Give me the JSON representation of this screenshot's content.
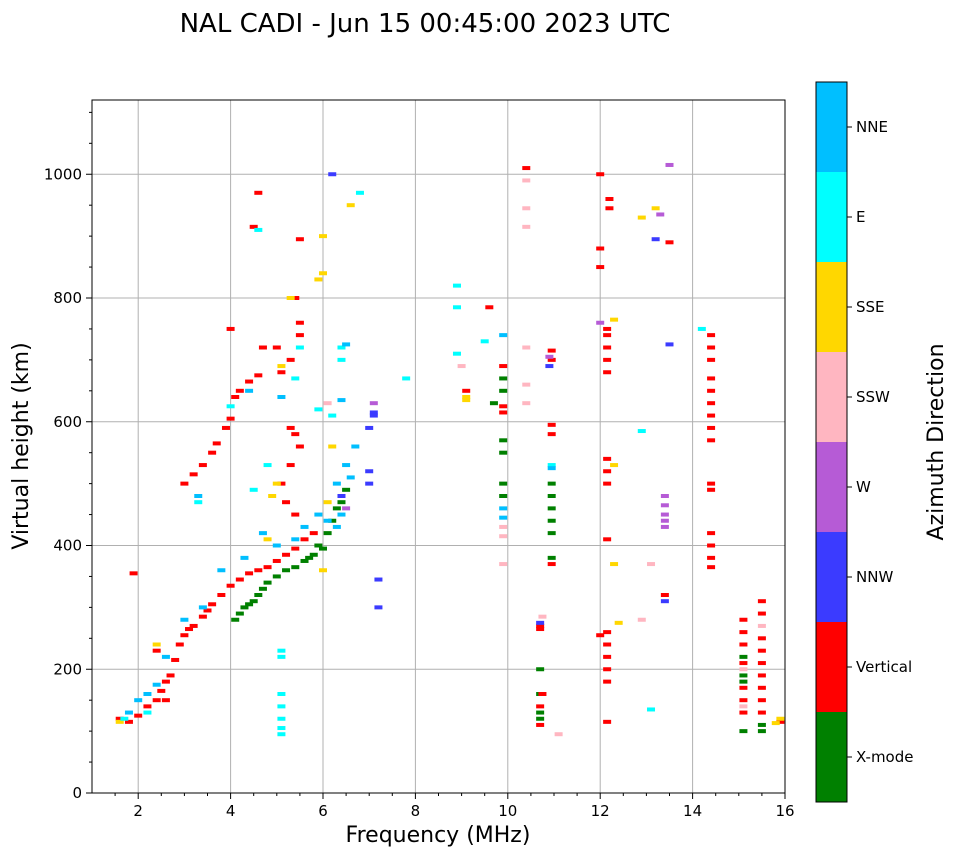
{
  "chart_data": {
    "type": "scatter",
    "title": "NAL CADI - Jun 15 00:45:00 2023 UTC",
    "xlabel": "Frequency (MHz)",
    "ylabel": "Virtual height (km)",
    "xlim": [
      1,
      16
    ],
    "ylim": [
      0,
      1120
    ],
    "xticks": [
      2,
      4,
      6,
      8,
      10,
      12,
      14,
      16
    ],
    "yticks": [
      0,
      200,
      400,
      600,
      800,
      1000
    ],
    "grid": true,
    "colorbar": {
      "label": "Azimuth Direction",
      "categories": [
        {
          "name": "X-mode",
          "color": "#008000"
        },
        {
          "name": "Vertical",
          "color": "#ff0000"
        },
        {
          "name": "NNW",
          "color": "#3b3bff"
        },
        {
          "name": "W",
          "color": "#b65bd6"
        },
        {
          "name": "SSW",
          "color": "#ffb6c1"
        },
        {
          "name": "SSE",
          "color": "#ffd700"
        },
        {
          "name": "E",
          "color": "#00ffff"
        },
        {
          "name": "NNE",
          "color": "#00bfff"
        }
      ]
    },
    "series": [
      {
        "name": "X-mode",
        "color": "#008000",
        "points": [
          [
            4.1,
            280
          ],
          [
            4.2,
            290
          ],
          [
            4.3,
            300
          ],
          [
            4.4,
            305
          ],
          [
            4.5,
            310
          ],
          [
            4.6,
            320
          ],
          [
            4.7,
            330
          ],
          [
            4.8,
            340
          ],
          [
            5.0,
            350
          ],
          [
            5.2,
            360
          ],
          [
            5.4,
            365
          ],
          [
            5.6,
            375
          ],
          [
            5.8,
            385
          ],
          [
            6.0,
            395
          ],
          [
            6.1,
            420
          ],
          [
            6.2,
            440
          ],
          [
            6.3,
            460
          ],
          [
            6.4,
            470
          ],
          [
            6.5,
            490
          ],
          [
            5.9,
            400
          ],
          [
            5.7,
            380
          ],
          [
            9.9,
            650
          ],
          [
            9.9,
            670
          ],
          [
            9.9,
            550
          ],
          [
            9.9,
            570
          ],
          [
            9.9,
            480
          ],
          [
            9.9,
            500
          ],
          [
            9.7,
            630
          ],
          [
            10.95,
            420
          ],
          [
            10.95,
            440
          ],
          [
            10.95,
            460
          ],
          [
            10.95,
            480
          ],
          [
            10.95,
            500
          ],
          [
            10.95,
            380
          ],
          [
            10.7,
            160
          ],
          [
            10.7,
            200
          ],
          [
            10.7,
            130
          ],
          [
            10.7,
            120
          ],
          [
            15.1,
            100
          ],
          [
            15.1,
            180
          ],
          [
            15.1,
            190
          ],
          [
            15.1,
            220
          ],
          [
            15.5,
            110
          ],
          [
            15.5,
            100
          ]
        ]
      },
      {
        "name": "Vertical",
        "color": "#ff0000",
        "points": [
          [
            1.6,
            120
          ],
          [
            1.8,
            115
          ],
          [
            2.0,
            125
          ],
          [
            2.2,
            140
          ],
          [
            2.4,
            150
          ],
          [
            2.5,
            165
          ],
          [
            2.6,
            180
          ],
          [
            2.7,
            190
          ],
          [
            2.8,
            215
          ],
          [
            2.9,
            240
          ],
          [
            3.0,
            255
          ],
          [
            3.1,
            265
          ],
          [
            3.2,
            270
          ],
          [
            3.4,
            285
          ],
          [
            3.5,
            295
          ],
          [
            3.6,
            305
          ],
          [
            3.8,
            320
          ],
          [
            4.0,
            335
          ],
          [
            4.2,
            345
          ],
          [
            4.4,
            355
          ],
          [
            4.6,
            360
          ],
          [
            4.8,
            365
          ],
          [
            5.0,
            375
          ],
          [
            5.2,
            385
          ],
          [
            5.4,
            395
          ],
          [
            5.6,
            410
          ],
          [
            5.8,
            420
          ],
          [
            2.4,
            230
          ],
          [
            2.6,
            150
          ],
          [
            1.9,
            355
          ],
          [
            3.0,
            500
          ],
          [
            3.2,
            515
          ],
          [
            3.4,
            530
          ],
          [
            3.6,
            550
          ],
          [
            3.7,
            565
          ],
          [
            3.9,
            590
          ],
          [
            4.0,
            605
          ],
          [
            4.1,
            640
          ],
          [
            4.2,
            650
          ],
          [
            4.4,
            665
          ],
          [
            4.6,
            675
          ],
          [
            4.0,
            750
          ],
          [
            4.7,
            720
          ],
          [
            5.0,
            720
          ],
          [
            5.1,
            680
          ],
          [
            5.3,
            700
          ],
          [
            5.5,
            740
          ],
          [
            5.5,
            760
          ],
          [
            4.6,
            970
          ],
          [
            4.5,
            915
          ],
          [
            5.5,
            895
          ],
          [
            5.4,
            800
          ],
          [
            5.3,
            590
          ],
          [
            5.4,
            580
          ],
          [
            5.5,
            560
          ],
          [
            5.3,
            530
          ],
          [
            5.1,
            500
          ],
          [
            5.2,
            470
          ],
          [
            5.4,
            450
          ],
          [
            9.1,
            650
          ],
          [
            9.6,
            785
          ],
          [
            9.9,
            615
          ],
          [
            9.9,
            625
          ],
          [
            9.9,
            690
          ],
          [
            10.95,
            580
          ],
          [
            10.95,
            595
          ],
          [
            10.95,
            370
          ],
          [
            10.95,
            700
          ],
          [
            10.95,
            715
          ],
          [
            10.75,
            160
          ],
          [
            10.7,
            265
          ],
          [
            10.7,
            270
          ],
          [
            10.7,
            140
          ],
          [
            10.7,
            110
          ],
          [
            10.4,
            1010
          ],
          [
            12.15,
            700
          ],
          [
            12.15,
            720
          ],
          [
            12.15,
            740
          ],
          [
            12.15,
            750
          ],
          [
            12.15,
            680
          ],
          [
            12.15,
            540
          ],
          [
            12.15,
            520
          ],
          [
            12.15,
            500
          ],
          [
            12.15,
            410
          ],
          [
            12.15,
            260
          ],
          [
            12.15,
            240
          ],
          [
            12.15,
            220
          ],
          [
            12.15,
            200
          ],
          [
            12.15,
            180
          ],
          [
            12.15,
            115
          ],
          [
            12.2,
            960
          ],
          [
            12.2,
            945
          ],
          [
            12.0,
            1000
          ],
          [
            12.0,
            880
          ],
          [
            12.0,
            850
          ],
          [
            12.0,
            255
          ],
          [
            13.5,
            890
          ],
          [
            13.4,
            320
          ],
          [
            14.4,
            740
          ],
          [
            14.4,
            720
          ],
          [
            14.4,
            700
          ],
          [
            14.4,
            670
          ],
          [
            14.4,
            650
          ],
          [
            14.4,
            630
          ],
          [
            14.4,
            610
          ],
          [
            14.4,
            590
          ],
          [
            14.4,
            570
          ],
          [
            14.4,
            500
          ],
          [
            14.4,
            490
          ],
          [
            14.4,
            420
          ],
          [
            14.4,
            400
          ],
          [
            14.4,
            380
          ],
          [
            14.4,
            365
          ],
          [
            15.1,
            280
          ],
          [
            15.1,
            260
          ],
          [
            15.1,
            240
          ],
          [
            15.1,
            210
          ],
          [
            15.1,
            170
          ],
          [
            15.1,
            150
          ],
          [
            15.1,
            130
          ],
          [
            15.5,
            310
          ],
          [
            15.5,
            290
          ],
          [
            15.5,
            250
          ],
          [
            15.5,
            230
          ],
          [
            15.5,
            210
          ],
          [
            15.5,
            190
          ],
          [
            15.5,
            170
          ],
          [
            15.5,
            150
          ],
          [
            15.5,
            130
          ],
          [
            15.9,
            115
          ]
        ]
      },
      {
        "name": "NNW",
        "color": "#3b3bff",
        "points": [
          [
            7.2,
            345
          ],
          [
            7.2,
            300
          ],
          [
            7.0,
            520
          ],
          [
            7.0,
            500
          ],
          [
            7.1,
            615
          ],
          [
            7.0,
            590
          ],
          [
            7.1,
            610
          ],
          [
            6.2,
            1000
          ],
          [
            10.9,
            690
          ],
          [
            13.2,
            895
          ],
          [
            13.5,
            725
          ],
          [
            13.4,
            310
          ],
          [
            10.7,
            275
          ],
          [
            6.4,
            480
          ]
        ]
      },
      {
        "name": "W",
        "color": "#b65bd6",
        "points": [
          [
            13.4,
            480
          ],
          [
            13.4,
            465
          ],
          [
            13.4,
            450
          ],
          [
            13.4,
            440
          ],
          [
            13.4,
            430
          ],
          [
            10.9,
            705
          ],
          [
            7.1,
            630
          ],
          [
            12.0,
            760
          ],
          [
            13.5,
            1015
          ],
          [
            13.3,
            935
          ],
          [
            6.5,
            460
          ]
        ]
      },
      {
        "name": "SSW",
        "color": "#ffb6c1",
        "points": [
          [
            9.0,
            690
          ],
          [
            9.9,
            430
          ],
          [
            9.9,
            415
          ],
          [
            9.9,
            370
          ],
          [
            10.4,
            990
          ],
          [
            10.4,
            945
          ],
          [
            10.4,
            915
          ],
          [
            10.4,
            720
          ],
          [
            10.4,
            660
          ],
          [
            10.4,
            630
          ],
          [
            10.75,
            285
          ],
          [
            11.1,
            95
          ],
          [
            12.9,
            280
          ],
          [
            13.1,
            370
          ],
          [
            15.1,
            140
          ],
          [
            15.1,
            200
          ],
          [
            15.5,
            270
          ],
          [
            6.1,
            630
          ]
        ]
      },
      {
        "name": "SSE",
        "color": "#ffd700",
        "points": [
          [
            6.6,
            950
          ],
          [
            6.0,
            900
          ],
          [
            6.0,
            840
          ],
          [
            5.9,
            830
          ],
          [
            5.3,
            800
          ],
          [
            5.1,
            690
          ],
          [
            5.0,
            500
          ],
          [
            4.8,
            410
          ],
          [
            4.9,
            480
          ],
          [
            6.0,
            360
          ],
          [
            6.1,
            470
          ],
          [
            6.2,
            560
          ],
          [
            9.1,
            640
          ],
          [
            9.1,
            635
          ],
          [
            12.3,
            765
          ],
          [
            12.3,
            530
          ],
          [
            12.3,
            370
          ],
          [
            12.4,
            275
          ],
          [
            12.9,
            930
          ],
          [
            13.2,
            945
          ],
          [
            15.9,
            120
          ],
          [
            15.8,
            113
          ],
          [
            2.4,
            240
          ],
          [
            1.6,
            115
          ]
        ]
      },
      {
        "name": "E",
        "color": "#00ffff",
        "points": [
          [
            4.6,
            910
          ],
          [
            6.8,
            970
          ],
          [
            7.8,
            670
          ],
          [
            8.9,
            820
          ],
          [
            8.9,
            785
          ],
          [
            8.9,
            710
          ],
          [
            9.5,
            730
          ],
          [
            6.4,
            720
          ],
          [
            6.4,
            700
          ],
          [
            6.2,
            610
          ],
          [
            5.5,
            720
          ],
          [
            5.4,
            670
          ],
          [
            5.1,
            230
          ],
          [
            5.1,
            220
          ],
          [
            5.1,
            160
          ],
          [
            5.1,
            140
          ],
          [
            5.1,
            120
          ],
          [
            5.1,
            105
          ],
          [
            5.1,
            95
          ],
          [
            14.2,
            750
          ],
          [
            13.1,
            135
          ],
          [
            12.9,
            585
          ],
          [
            10.95,
            530
          ],
          [
            5.9,
            620
          ],
          [
            4.8,
            530
          ],
          [
            4.5,
            490
          ],
          [
            4.0,
            625
          ],
          [
            3.3,
            470
          ],
          [
            2.2,
            130
          ],
          [
            1.7,
            120
          ]
        ]
      },
      {
        "name": "NNE",
        "color": "#00bfff",
        "points": [
          [
            6.5,
            725
          ],
          [
            6.4,
            635
          ],
          [
            6.7,
            560
          ],
          [
            6.5,
            530
          ],
          [
            6.6,
            510
          ],
          [
            6.3,
            500
          ],
          [
            6.4,
            450
          ],
          [
            6.3,
            430
          ],
          [
            6.1,
            440
          ],
          [
            5.9,
            450
          ],
          [
            5.6,
            430
          ],
          [
            5.4,
            410
          ],
          [
            5.0,
            400
          ],
          [
            4.7,
            420
          ],
          [
            4.3,
            380
          ],
          [
            3.8,
            360
          ],
          [
            3.4,
            300
          ],
          [
            3.0,
            280
          ],
          [
            2.6,
            220
          ],
          [
            2.4,
            175
          ],
          [
            2.2,
            160
          ],
          [
            2.0,
            150
          ],
          [
            1.8,
            130
          ],
          [
            5.1,
            640
          ],
          [
            4.4,
            650
          ],
          [
            3.3,
            480
          ],
          [
            9.9,
            460
          ],
          [
            9.9,
            445
          ],
          [
            9.9,
            740
          ],
          [
            10.95,
            525
          ]
        ]
      }
    ]
  }
}
